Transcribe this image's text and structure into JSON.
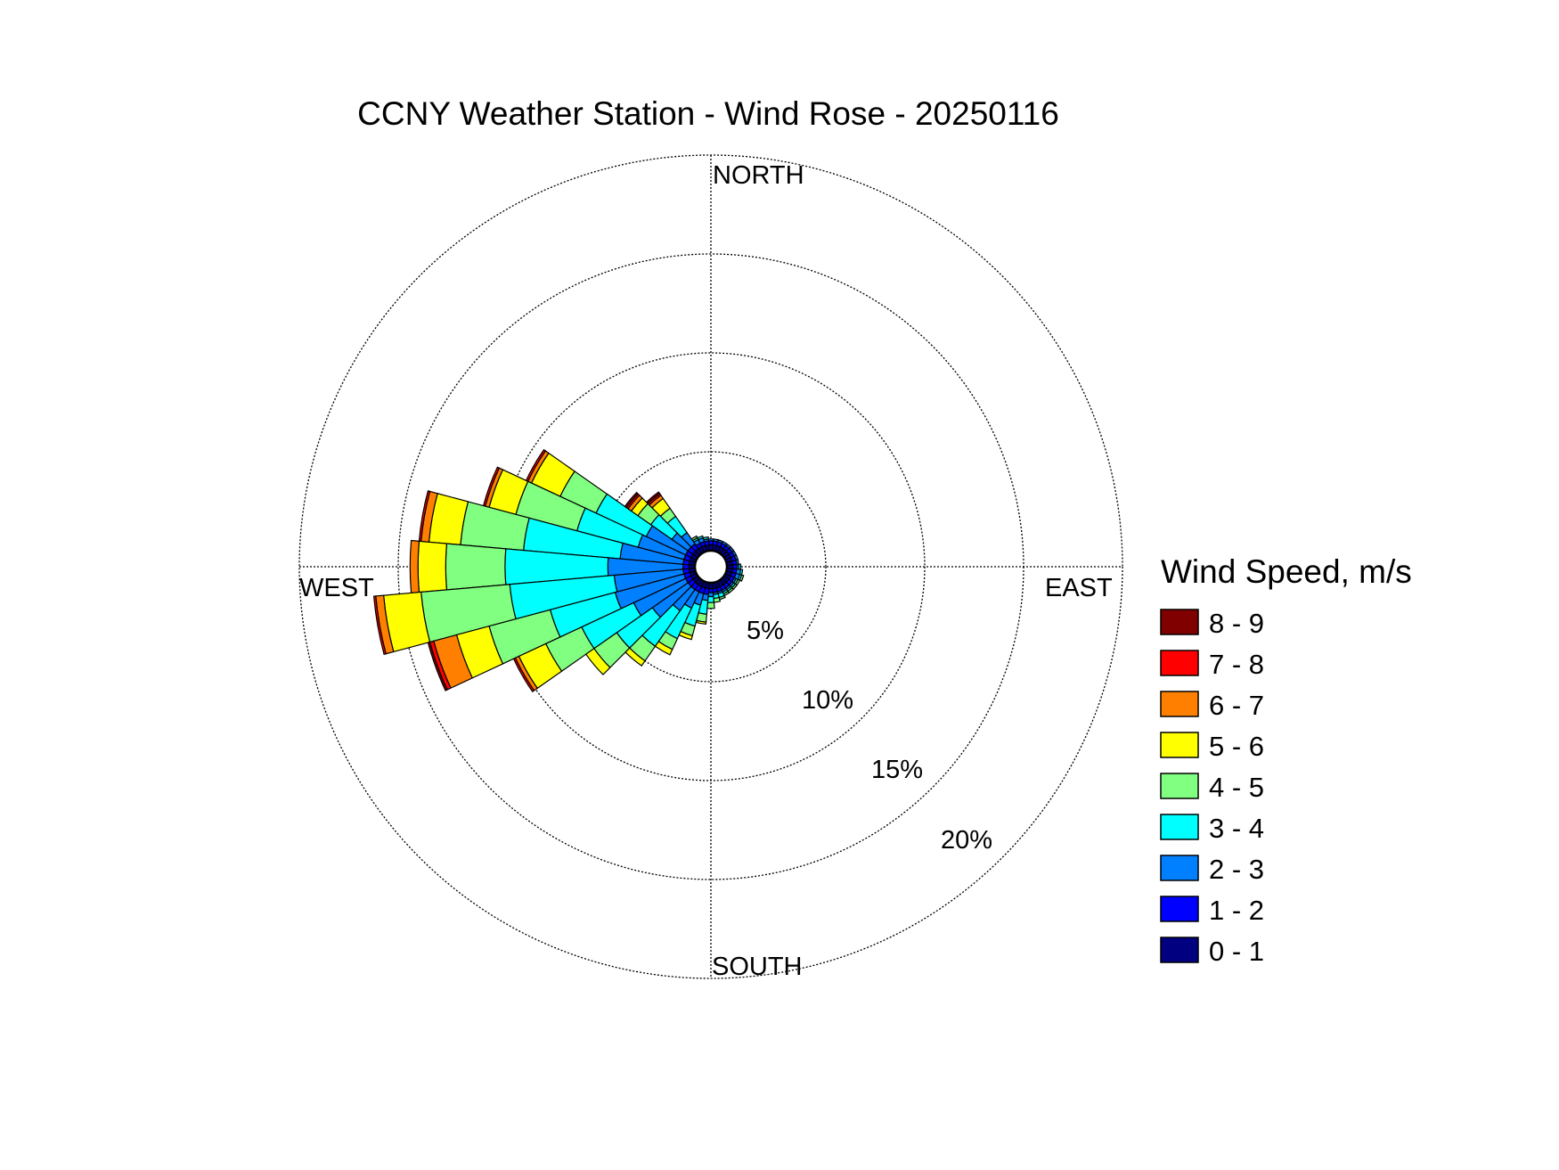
{
  "chart_data": {
    "type": "wind-rose",
    "title": "CCNY Weather Station - Wind Rose - 20250116",
    "direction_labels": {
      "north": "NORTH",
      "east": "EAST",
      "south": "SOUTH",
      "west": "WEST"
    },
    "radial_ticks": [
      {
        "value": 5,
        "label": "5%"
      },
      {
        "value": 10,
        "label": "10%"
      },
      {
        "value": 15,
        "label": "15%"
      },
      {
        "value": 20,
        "label": "20%"
      }
    ],
    "radial_max": 20,
    "grid": "dotted",
    "legend": {
      "title": "Wind Speed, m/s",
      "placement": "right",
      "items": [
        {
          "label": "8 - 9",
          "color": "#800000"
        },
        {
          "label": "7 - 8",
          "color": "#ff0000"
        },
        {
          "label": "6 - 7",
          "color": "#ff8000"
        },
        {
          "label": "5 - 6",
          "color": "#ffff00"
        },
        {
          "label": "4 - 5",
          "color": "#80ff80"
        },
        {
          "label": "3 - 4",
          "color": "#00ffff"
        },
        {
          "label": "2 - 3",
          "color": "#0080ff"
        },
        {
          "label": "1 - 2",
          "color": "#0000ff"
        },
        {
          "label": "0 - 1",
          "color": "#000080"
        }
      ]
    },
    "bins": [
      "0 - 1",
      "1 - 2",
      "2 - 3",
      "3 - 4",
      "4 - 5",
      "5 - 6",
      "6 - 7",
      "7 - 8",
      "8 - 9"
    ],
    "bin_colors": [
      "#000080",
      "#0000ff",
      "#0080ff",
      "#00ffff",
      "#80ff80",
      "#ffff00",
      "#ff8000",
      "#ff0000",
      "#800000"
    ],
    "sectors": [
      {
        "direction_deg": 300,
        "cumulative_percent": [
          0.3,
          0.6,
          2.8,
          5.6,
          7.6,
          9.2,
          9.4,
          9.5,
          9.5
        ]
      },
      {
        "direction_deg": 290,
        "cumulative_percent": [
          0.3,
          0.6,
          3.0,
          6.2,
          9.4,
          10.8,
          11.0,
          11.1,
          11.1
        ]
      },
      {
        "direction_deg": 280,
        "cumulative_percent": [
          0.3,
          0.6,
          3.8,
          8.7,
          11.9,
          13.5,
          13.9,
          14.0,
          14.0
        ]
      },
      {
        "direction_deg": 270,
        "cumulative_percent": [
          0.3,
          0.6,
          4.4,
          9.6,
          12.6,
          14.0,
          14.4,
          14.4,
          14.4
        ]
      },
      {
        "direction_deg": 260,
        "cumulative_percent": [
          0.3,
          0.6,
          4.1,
          9.4,
          13.9,
          15.8,
          16.2,
          16.3,
          16.3
        ]
      },
      {
        "direction_deg": 250,
        "cumulative_percent": [
          0.3,
          0.6,
          4.2,
          7.6,
          10.8,
          12.5,
          13.7,
          13.9,
          14.0
        ]
      },
      {
        "direction_deg": 240,
        "cumulative_percent": [
          0.3,
          0.6,
          3.5,
          6.4,
          8.4,
          9.9,
          10.1,
          10.2,
          10.2
        ]
      },
      {
        "direction_deg": 230,
        "cumulative_percent": [
          0.3,
          0.6,
          2.8,
          5.0,
          6.4,
          6.9,
          6.9,
          6.9,
          6.9
        ]
      },
      {
        "direction_deg": 220,
        "cumulative_percent": [
          0.3,
          0.6,
          1.9,
          4.1,
          5.0,
          5.3,
          5.3,
          5.3,
          5.3
        ]
      },
      {
        "direction_deg": 210,
        "cumulative_percent": [
          0.3,
          0.6,
          1.5,
          3.2,
          3.8,
          4.1,
          4.1,
          4.1,
          4.1
        ]
      },
      {
        "direction_deg": 200,
        "cumulative_percent": [
          0.3,
          0.6,
          1.2,
          2.3,
          2.8,
          3.0,
          3.0,
          3.0,
          3.0
        ]
      },
      {
        "direction_deg": 190,
        "cumulative_percent": [
          0.3,
          0.6,
          0.9,
          1.6,
          2.0,
          2.1,
          2.1,
          2.1,
          2.1
        ]
      },
      {
        "direction_deg": 180,
        "cumulative_percent": [
          0.3,
          0.5,
          0.7,
          1.0,
          1.3,
          1.3,
          1.3,
          1.3,
          1.3
        ]
      },
      {
        "direction_deg": 170,
        "cumulative_percent": [
          0.3,
          0.5,
          0.6,
          0.8,
          1.0,
          1.0,
          1.0,
          1.0,
          1.0
        ]
      },
      {
        "direction_deg": 160,
        "cumulative_percent": [
          0.3,
          0.5,
          0.6,
          0.8,
          0.9,
          0.9,
          0.9,
          0.9,
          0.9
        ]
      },
      {
        "direction_deg": 150,
        "cumulative_percent": [
          0.3,
          0.5,
          0.6,
          0.7,
          0.8,
          0.8,
          0.8,
          0.8,
          0.8
        ]
      },
      {
        "direction_deg": 140,
        "cumulative_percent": [
          0.3,
          0.5,
          0.6,
          0.7,
          0.8,
          0.8,
          0.8,
          0.8,
          0.8
        ]
      },
      {
        "direction_deg": 130,
        "cumulative_percent": [
          0.3,
          0.5,
          0.6,
          0.7,
          0.8,
          0.8,
          0.8,
          0.8,
          0.8
        ]
      },
      {
        "direction_deg": 120,
        "cumulative_percent": [
          0.3,
          0.5,
          0.6,
          0.7,
          0.8,
          0.8,
          0.8,
          0.8,
          0.8
        ]
      },
      {
        "direction_deg": 110,
        "cumulative_percent": [
          0.3,
          0.5,
          0.7,
          0.8,
          0.9,
          0.9,
          0.9,
          0.9,
          0.9
        ]
      },
      {
        "direction_deg": 100,
        "cumulative_percent": [
          0.3,
          0.5,
          0.7,
          0.8,
          0.8,
          0.8,
          0.8,
          0.8,
          0.8
        ]
      },
      {
        "direction_deg": 90,
        "cumulative_percent": [
          0.3,
          0.5,
          0.6,
          0.7,
          0.7,
          0.7,
          0.7,
          0.7,
          0.7
        ]
      },
      {
        "direction_deg": 80,
        "cumulative_percent": [
          0.3,
          0.5,
          0.6,
          0.6,
          0.6,
          0.6,
          0.6,
          0.6,
          0.6
        ]
      },
      {
        "direction_deg": 70,
        "cumulative_percent": [
          0.3,
          0.5,
          0.6,
          0.6,
          0.6,
          0.6,
          0.6,
          0.6,
          0.6
        ]
      },
      {
        "direction_deg": 60,
        "cumulative_percent": [
          0.3,
          0.5,
          0.6,
          0.6,
          0.6,
          0.6,
          0.6,
          0.6,
          0.6
        ]
      },
      {
        "direction_deg": 50,
        "cumulative_percent": [
          0.3,
          0.5,
          0.6,
          0.6,
          0.6,
          0.6,
          0.6,
          0.6,
          0.6
        ]
      },
      {
        "direction_deg": 40,
        "cumulative_percent": [
          0.3,
          0.5,
          0.6,
          0.6,
          0.6,
          0.6,
          0.6,
          0.6,
          0.6
        ]
      },
      {
        "direction_deg": 30,
        "cumulative_percent": [
          0.3,
          0.5,
          0.6,
          0.6,
          0.6,
          0.6,
          0.6,
          0.6,
          0.6
        ]
      },
      {
        "direction_deg": 20,
        "cumulative_percent": [
          0.3,
          0.5,
          0.6,
          0.6,
          0.6,
          0.6,
          0.6,
          0.6,
          0.6
        ]
      },
      {
        "direction_deg": 10,
        "cumulative_percent": [
          0.3,
          0.5,
          0.6,
          0.6,
          0.6,
          0.6,
          0.6,
          0.6,
          0.6
        ]
      },
      {
        "direction_deg": 0,
        "cumulative_percent": [
          0.3,
          0.5,
          0.6,
          0.6,
          0.6,
          0.6,
          0.6,
          0.6,
          0.6
        ]
      },
      {
        "direction_deg": 350,
        "cumulative_percent": [
          0.3,
          0.5,
          0.6,
          0.7,
          0.7,
          0.7,
          0.7,
          0.7,
          0.7
        ]
      },
      {
        "direction_deg": 340,
        "cumulative_percent": [
          0.3,
          0.5,
          0.7,
          0.8,
          0.8,
          0.8,
          0.8,
          0.8,
          0.8
        ]
      },
      {
        "direction_deg": 330,
        "cumulative_percent": [
          0.3,
          0.5,
          0.7,
          0.8,
          0.9,
          0.9,
          0.9,
          0.9,
          0.9
        ]
      },
      {
        "direction_deg": 320,
        "cumulative_percent": [
          0.3,
          0.6,
          1.3,
          2.3,
          2.8,
          3.4,
          3.6,
          3.7,
          3.8
        ]
      },
      {
        "direction_deg": 310,
        "cumulative_percent": [
          0.3,
          0.6,
          1.6,
          2.9,
          3.7,
          4.1,
          4.3,
          4.4,
          4.5
        ]
      }
    ]
  }
}
